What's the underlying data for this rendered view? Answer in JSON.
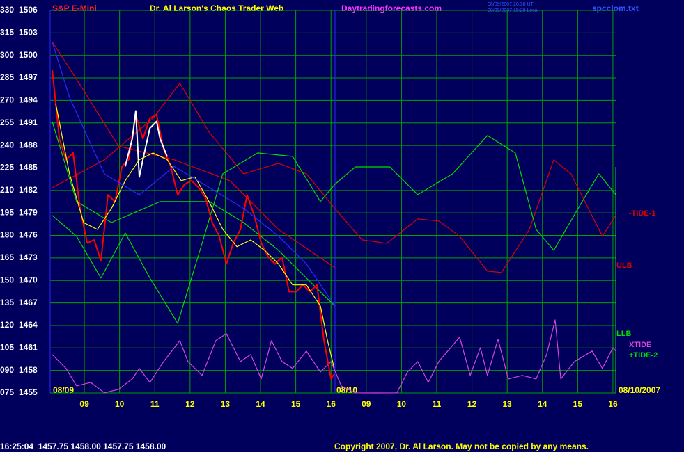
{
  "chart_data": {
    "type": "line",
    "title": "S&P E-Mini",
    "header_texts": [
      "Dr. Al Larson's Chaos Trader Web",
      "Daytradingforecasts.com",
      "08/09/2007 20:30 UT",
      "08/09/2007 15:20 Local",
      "spcclom.txt"
    ],
    "day_labels": [
      "08/09",
      "08/10",
      "08/10/2007"
    ],
    "footer_quote": "16:25:04  1457.75 1458.00 1457.75 1458.00",
    "copyright": "Copyright 2007, Dr. Al Larson. May not be copied by any means.",
    "grid": true,
    "xlim": [
      8.03,
      24.08
    ],
    "xticks": [
      {
        "value": 9,
        "label": "09"
      },
      10,
      11,
      12,
      13,
      14,
      15,
      16,
      {
        "value": 17,
        "label": "09"
      },
      {
        "value": 18,
        "label": "10"
      },
      {
        "value": 19,
        "label": "11"
      },
      {
        "value": 20,
        "label": "12"
      },
      {
        "value": 21,
        "label": "13"
      },
      {
        "value": 22,
        "label": "14"
      },
      {
        "value": 23,
        "label": "15"
      },
      {
        "value": 24,
        "label": "16"
      }
    ],
    "ylim": [
      75,
      330
    ],
    "yticks": [
      330,
      315,
      300,
      285,
      270,
      255,
      240,
      225,
      210,
      195,
      180,
      165,
      150,
      135,
      120,
      105,
      {
        "value": 90,
        "label": "090"
      },
      {
        "value": 75,
        "label": "075"
      }
    ],
    "y2lim": [
      1455,
      1506
    ],
    "y2ticks": [
      1506,
      1503,
      1500,
      1497,
      1494,
      1491,
      1488,
      1485,
      1482,
      1479,
      1476,
      1473,
      1470,
      1467,
      1464,
      1461,
      1458,
      1455
    ],
    "series": [
      {
        "color": "#ff0000",
        "axis": "y2",
        "x": [
          8.09,
          8.29,
          8.48,
          8.68,
          8.88,
          9.08,
          9.28,
          9.47,
          9.67,
          9.87,
          10.07,
          10.26,
          10.46,
          10.66,
          10.86,
          11.05,
          11.25,
          11.45,
          11.65,
          11.84,
          12.04,
          12.24,
          12.44,
          12.63,
          12.83,
          13.03,
          13.23,
          13.43,
          13.62,
          13.82,
          14.02,
          14.22,
          14.41,
          14.61,
          14.81,
          15.01,
          15.2,
          15.4,
          15.6,
          15.8,
          16.0,
          16.09
        ],
        "values": [
          1498.1,
          1488.9,
          1486.1,
          1487.0,
          1479.6,
          1475.0,
          1475.4,
          1472.6,
          1481.4,
          1480.5,
          1485.2,
          1486.1,
          1492.1,
          1488.9,
          1491.6,
          1492.1,
          1487.5,
          1485.2,
          1481.4,
          1482.8,
          1483.3,
          1482.4,
          1481.0,
          1477.7,
          1475.9,
          1472.2,
          1475.0,
          1476.8,
          1481.4,
          1478.7,
          1475.0,
          1473.1,
          1472.2,
          1473.1,
          1468.5,
          1468.5,
          1469.4,
          1468.5,
          1469.4,
          1462.0,
          1456.9,
          1457.5
        ]
      },
      {
        "color": "#ffffff",
        "axis": "y2",
        "x": [
          10.16,
          10.36,
          10.46,
          10.56,
          10.66,
          10.86,
          11.05,
          11.15,
          11.35
        ],
        "values": [
          1485.2,
          1488.9,
          1492.6,
          1483.8,
          1486.1,
          1490.3,
          1491.2,
          1488.9,
          1486.5
        ]
      },
      {
        "color": "#ffff00",
        "axis": "y2",
        "x": [
          8.19,
          8.58,
          8.98,
          9.37,
          9.77,
          10.16,
          10.56,
          10.95,
          11.35,
          11.75,
          12.14,
          12.54,
          12.93,
          13.33,
          13.72,
          14.12,
          14.51,
          14.91,
          15.3,
          15.7,
          15.9,
          16.09
        ],
        "values": [
          1493.5,
          1484.2,
          1477.7,
          1476.8,
          1479.6,
          1483.3,
          1486.1,
          1487.0,
          1486.1,
          1483.3,
          1483.8,
          1480.5,
          1476.8,
          1474.5,
          1475.4,
          1474.0,
          1472.2,
          1469.4,
          1469.4,
          1466.6,
          1462.0,
          1458.3
        ]
      },
      {
        "color": "#2a2aff",
        "axis": "y2",
        "x": [
          8.09,
          8.58,
          9.57,
          10.56,
          11.55,
          12.54,
          13.52,
          14.51,
          15.3,
          16.11
        ],
        "values": [
          1501.8,
          1494.4,
          1484.2,
          1481.4,
          1485.2,
          1482.4,
          1479.6,
          1475.9,
          1472.2,
          1466.6
        ]
      },
      {
        "name": "-TIDE-1",
        "color": "#dd0000",
        "x": [
          8.09,
          9.57,
          10.95,
          11.71,
          12.54,
          13.52,
          14.51,
          15.3,
          16.11,
          16.88,
          17.58,
          18.46,
          19.06,
          19.65,
          20.44,
          20.84,
          21.63,
          22.32,
          22.81,
          23.7,
          24.08
        ],
        "values": [
          211.8,
          230.4,
          258.2,
          281.4,
          248.9,
          221.1,
          228.1,
          221.1,
          197.9,
          177.1,
          174.7,
          191.0,
          189.6,
          179.4,
          156.2,
          155.3,
          184.0,
          230.4,
          221.1,
          179.4,
          193.3
        ]
      },
      {
        "name": "ULB",
        "color": "#dd0000",
        "x": [
          8.09,
          8.98,
          9.97,
          11.55,
          13.13,
          14.51,
          16.11
        ],
        "values": [
          309.2,
          276.7,
          239.6,
          230.4,
          216.5,
          184.0,
          158.5
        ]
      },
      {
        "name": "LLB",
        "color": "#00dd00",
        "x": [
          8.09,
          8.78,
          9.77,
          11.15,
          12.54,
          13.52,
          14.51,
          15.7,
          16.11
        ],
        "values": [
          255.9,
          202.6,
          188.6,
          202.6,
          202.6,
          188.6,
          170.1,
          142.3,
          133.0
        ]
      },
      {
        "name": "XTIDE",
        "color": "#dd44dd",
        "x": [
          8.09,
          8.48,
          8.78,
          9.18,
          9.57,
          9.97,
          10.36,
          10.56,
          10.86,
          11.25,
          11.71,
          11.94,
          12.34,
          12.73,
          13.03,
          13.43,
          13.72,
          14.02,
          14.31,
          14.61,
          14.91,
          15.3,
          15.7,
          16.0,
          16.29,
          16.69,
          17.28,
          17.87,
          18.17,
          18.46,
          18.76,
          19.06,
          19.65,
          19.95,
          20.24,
          20.44,
          20.74,
          21.03,
          21.43,
          21.82,
          22.12,
          22.36,
          22.52,
          22.91,
          23.41,
          23.7,
          24.0,
          24.08
        ],
        "values": [
          100.6,
          91.3,
          79.7,
          82.0,
          75.1,
          77.4,
          84.3,
          91.3,
          82.0,
          95.9,
          109.8,
          95.9,
          86.7,
          109.8,
          114.5,
          95.9,
          100.6,
          84.3,
          109.8,
          95.9,
          91.3,
          102.9,
          88.9,
          95.9,
          79.7,
          75.1,
          75.0,
          75.1,
          88.9,
          95.9,
          82.0,
          95.9,
          112.2,
          86.7,
          105.2,
          86.7,
          110.8,
          84.3,
          86.7,
          84.3,
          100.6,
          123.7,
          84.3,
          95.9,
          102.9,
          91.3,
          105.2,
          102.9
        ]
      },
      {
        "name": "+TIDE-2",
        "color": "#00dd00",
        "x": [
          8.09,
          8.78,
          9.47,
          10.16,
          10.86,
          11.65,
          12.34,
          12.93,
          13.92,
          14.91,
          15.7,
          16.11,
          16.69,
          17.67,
          18.46,
          19.45,
          20.44,
          21.23,
          21.82,
          22.32,
          23.01,
          23.6,
          24.08
        ],
        "values": [
          193.3,
          179.4,
          151.6,
          181.7,
          151.6,
          121.4,
          174.7,
          221.1,
          235.0,
          232.7,
          202.6,
          214.1,
          225.7,
          225.7,
          207.2,
          221.1,
          246.6,
          235.0,
          184.0,
          170.1,
          197.9,
          221.1,
          207.2
        ]
      }
    ]
  }
}
